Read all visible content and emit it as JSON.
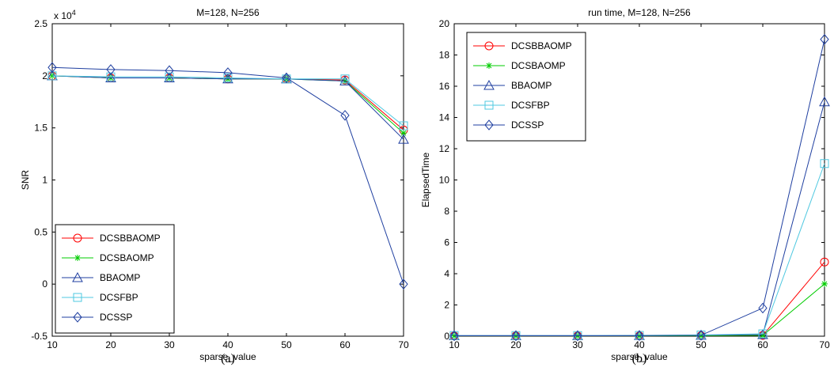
{
  "chart_data": [
    {
      "type": "line",
      "panel": "(a)",
      "title": "M=128, N=256",
      "xlabel": "sparse_value",
      "ylabel": "SNR",
      "y_multiplier_label": "x 10",
      "y_multiplier_exponent": "4",
      "xlim": [
        10,
        70
      ],
      "ylim": [
        -0.5,
        2.5
      ],
      "xticks": [
        "10",
        "20",
        "30",
        "40",
        "50",
        "60",
        "70"
      ],
      "yticks": [
        "-0.5",
        "0",
        "0.5",
        "1",
        "1.5",
        "2",
        "2.5"
      ],
      "grid": false,
      "legend_position": "bottom-left",
      "x": [
        10,
        20,
        30,
        40,
        50,
        60,
        70
      ],
      "series": [
        {
          "name": "DCSBBAOMP",
          "color": "#ff0000",
          "marker": "circle",
          "values": [
            2.0,
            1.98,
            1.98,
            1.97,
            1.97,
            1.96,
            1.48
          ]
        },
        {
          "name": "DCSBAOMP",
          "color": "#00cc00",
          "marker": "star",
          "values": [
            2.0,
            1.98,
            1.98,
            1.97,
            1.97,
            1.95,
            1.45
          ]
        },
        {
          "name": "BBAOMP",
          "color": "#1f3fa0",
          "marker": "triangle",
          "values": [
            2.0,
            1.98,
            1.98,
            1.97,
            1.97,
            1.95,
            1.39
          ]
        },
        {
          "name": "DCSFBP",
          "color": "#4fc8e0",
          "marker": "square",
          "values": [
            2.0,
            1.99,
            1.99,
            1.98,
            1.97,
            1.97,
            1.52
          ]
        },
        {
          "name": "DCSSP",
          "color": "#1f3fa0",
          "marker": "diamond",
          "values": [
            2.08,
            2.06,
            2.05,
            2.03,
            1.98,
            1.62,
            0.0
          ]
        }
      ],
      "caption": "(a)"
    },
    {
      "type": "line",
      "panel": "(b)",
      "title": "run time, M=128, N=256",
      "xlabel": "sparse_value",
      "ylabel": "ElapsedTime",
      "xlim": [
        10,
        70
      ],
      "ylim": [
        0,
        20
      ],
      "xticks": [
        "10",
        "20",
        "30",
        "40",
        "50",
        "60",
        "70"
      ],
      "yticks": [
        "0",
        "2",
        "4",
        "6",
        "8",
        "10",
        "12",
        "14",
        "16",
        "18",
        "20"
      ],
      "grid": false,
      "legend_position": "top-left",
      "x": [
        10,
        20,
        30,
        40,
        50,
        60,
        70
      ],
      "series": [
        {
          "name": "DCSBBAOMP",
          "color": "#ff0000",
          "marker": "circle",
          "values": [
            0.02,
            0.02,
            0.02,
            0.02,
            0.03,
            0.05,
            4.75
          ]
        },
        {
          "name": "DCSBAOMP",
          "color": "#00cc00",
          "marker": "star",
          "values": [
            0.02,
            0.02,
            0.02,
            0.02,
            0.03,
            0.05,
            3.35
          ]
        },
        {
          "name": "BBAOMP",
          "color": "#1f3fa0",
          "marker": "triangle",
          "values": [
            0.03,
            0.03,
            0.03,
            0.04,
            0.06,
            0.1,
            15.0
          ]
        },
        {
          "name": "DCSFBP",
          "color": "#4fc8e0",
          "marker": "square",
          "values": [
            0.04,
            0.04,
            0.04,
            0.05,
            0.08,
            0.15,
            11.05
          ]
        },
        {
          "name": "DCSSP",
          "color": "#1f3fa0",
          "marker": "diamond",
          "values": [
            0.03,
            0.03,
            0.03,
            0.04,
            0.06,
            1.8,
            19.0
          ]
        }
      ],
      "caption": "(b)"
    }
  ]
}
